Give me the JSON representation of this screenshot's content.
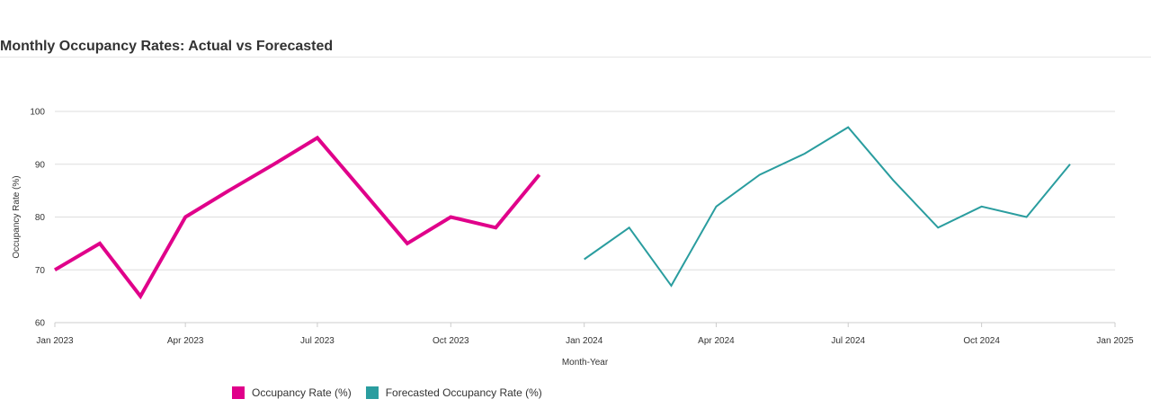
{
  "title": "Monthly Occupancy Rates: Actual vs Forecasted",
  "chart_data": {
    "type": "line",
    "title": "Monthly Occupancy Rates: Actual vs Forecasted",
    "xlabel": "Month-Year",
    "ylabel": "Occupancy Rate (%)",
    "ylim": [
      60,
      100
    ],
    "yticks": [
      60,
      70,
      80,
      90,
      100
    ],
    "xlim": [
      "2023-01-01",
      "2025-01-01"
    ],
    "xticks": [
      {
        "date": "2023-01-01",
        "label": "Jan 2023"
      },
      {
        "date": "2023-04-01",
        "label": "Apr 2023"
      },
      {
        "date": "2023-07-01",
        "label": "Jul 2023"
      },
      {
        "date": "2023-10-01",
        "label": "Oct 2023"
      },
      {
        "date": "2024-01-01",
        "label": "Jan 2024"
      },
      {
        "date": "2024-04-01",
        "label": "Apr 2024"
      },
      {
        "date": "2024-07-01",
        "label": "Jul 2024"
      },
      {
        "date": "2024-10-01",
        "label": "Oct 2024"
      },
      {
        "date": "2025-01-01",
        "label": "Jan 2025"
      }
    ],
    "grid": true,
    "legend_position": "bottom-left",
    "series": [
      {
        "name": "Occupancy Rate (%)",
        "color": "#e0008a",
        "x": [
          "2023-01-01",
          "2023-02-01",
          "2023-03-01",
          "2023-04-01",
          "2023-05-01",
          "2023-06-01",
          "2023-07-01",
          "2023-08-01",
          "2023-09-01",
          "2023-10-01",
          "2023-11-01",
          "2023-12-01"
        ],
        "values": [
          70,
          75,
          65,
          80,
          85,
          90,
          95,
          85,
          75,
          80,
          78,
          88
        ]
      },
      {
        "name": "Forecasted Occupancy Rate (%)",
        "color": "#2a9d9f",
        "x": [
          "2024-01-01",
          "2024-02-01",
          "2024-03-01",
          "2024-04-01",
          "2024-05-01",
          "2024-06-01",
          "2024-07-01",
          "2024-08-01",
          "2024-09-01",
          "2024-10-01",
          "2024-11-01",
          "2024-12-01"
        ],
        "values": [
          72,
          78,
          67,
          82,
          88,
          92,
          97,
          87,
          78,
          82,
          80,
          90
        ]
      }
    ]
  }
}
